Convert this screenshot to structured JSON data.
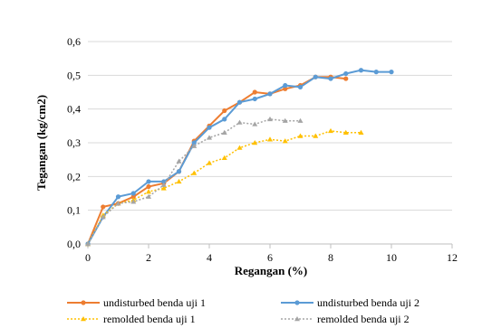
{
  "chart_data": {
    "type": "line",
    "title": "",
    "xlabel": "Regangan (%)",
    "ylabel": "Tegangan (kg/cm2)",
    "xlim": [
      0,
      12
    ],
    "ylim": [
      0,
      0.6
    ],
    "x_ticks": [
      "0",
      "2",
      "4",
      "6",
      "8",
      "10",
      "12"
    ],
    "y_ticks": [
      "0,0",
      "0,1",
      "0,2",
      "0,3",
      "0,4",
      "0,5",
      "0,6"
    ],
    "grid": "horizontal",
    "legend_position": "bottom",
    "series": [
      {
        "name": "undisturbed benda uji 1",
        "color": "#ED7D31",
        "line_style": "solid",
        "marker": "circle",
        "x": [
          0,
          0.5,
          1,
          1.5,
          2,
          2.5,
          3,
          3.5,
          4,
          4.5,
          5,
          5.5,
          6,
          6.5,
          7,
          7.5,
          8,
          8.5
        ],
        "y": [
          0,
          0.11,
          0.12,
          0.14,
          0.17,
          0.18,
          0.215,
          0.305,
          0.35,
          0.395,
          0.42,
          0.45,
          0.445,
          0.46,
          0.47,
          0.495,
          0.495,
          0.49
        ]
      },
      {
        "name": "undisturbed benda uji 2",
        "color": "#5B9BD5",
        "line_style": "solid",
        "marker": "circle",
        "x": [
          0,
          0.5,
          1,
          1.5,
          2,
          2.5,
          3,
          3.5,
          4,
          4.5,
          5,
          5.5,
          6,
          6.5,
          7,
          7.5,
          8,
          8.5,
          9,
          9.5,
          10
        ],
        "y": [
          0,
          0.08,
          0.14,
          0.15,
          0.185,
          0.185,
          0.215,
          0.3,
          0.345,
          0.37,
          0.42,
          0.43,
          0.445,
          0.47,
          0.465,
          0.495,
          0.49,
          0.505,
          0.515,
          0.51,
          0.51
        ]
      },
      {
        "name": "remolded benda uji 1",
        "color": "#FFC000",
        "line_style": "dotted",
        "marker": "triangle",
        "x": [
          0,
          0.5,
          1,
          1.5,
          2,
          2.5,
          3,
          3.5,
          4,
          4.5,
          5,
          5.5,
          6,
          6.5,
          7,
          7.5,
          8,
          8.5,
          9
        ],
        "y": [
          0,
          0.085,
          0.12,
          0.13,
          0.155,
          0.165,
          0.185,
          0.21,
          0.24,
          0.255,
          0.285,
          0.3,
          0.31,
          0.305,
          0.32,
          0.32,
          0.335,
          0.33,
          0.33
        ]
      },
      {
        "name": "remolded benda uji 2",
        "color": "#A5A5A5",
        "line_style": "dotted",
        "marker": "triangle",
        "x": [
          0,
          0.5,
          1,
          1.5,
          2,
          2.5,
          3,
          3.5,
          4,
          4.5,
          5,
          5.5,
          6,
          6.5,
          7
        ],
        "y": [
          0,
          0.08,
          0.12,
          0.125,
          0.14,
          0.175,
          0.245,
          0.29,
          0.315,
          0.33,
          0.36,
          0.355,
          0.37,
          0.365,
          0.365
        ]
      }
    ]
  }
}
